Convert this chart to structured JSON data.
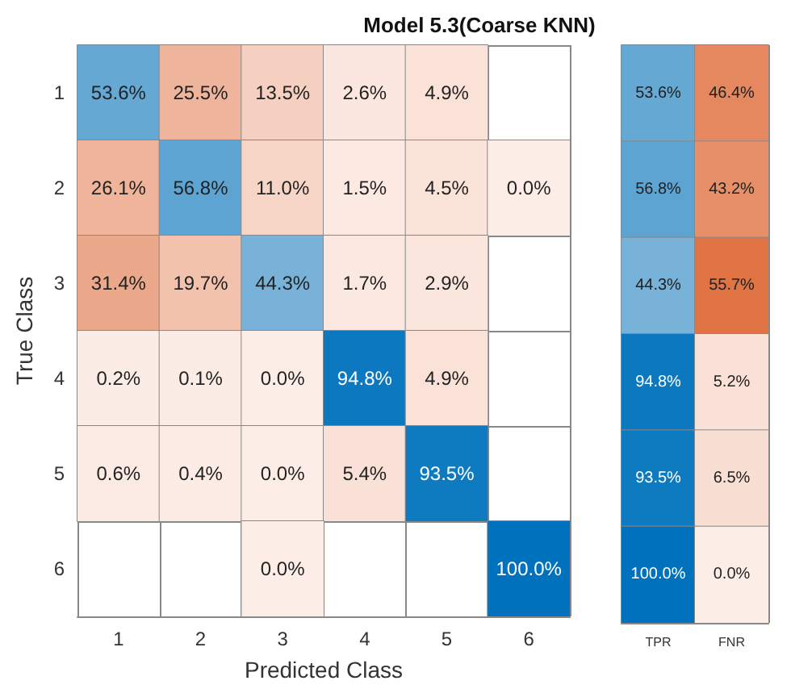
{
  "chart_data": [
    {
      "type": "heatmap",
      "title": "Model 5.3(Coarse KNN)",
      "xlabel": "Predicted Class",
      "ylabel": "True Class",
      "categories": [
        "1",
        "2",
        "3",
        "4",
        "5",
        "6"
      ],
      "y_categories": [
        "1",
        "2",
        "3",
        "4",
        "5",
        "6"
      ],
      "cells": [
        [
          53.6,
          25.5,
          13.5,
          2.6,
          4.9,
          null
        ],
        [
          26.1,
          56.8,
          11.0,
          1.5,
          4.5,
          0.0
        ],
        [
          31.4,
          19.7,
          44.3,
          1.7,
          2.9,
          null
        ],
        [
          0.2,
          0.1,
          0.0,
          94.8,
          4.9,
          null
        ],
        [
          0.6,
          0.4,
          0.0,
          5.4,
          93.5,
          null
        ],
        [
          null,
          null,
          0.0,
          null,
          null,
          100.0
        ]
      ],
      "cell_labels": [
        [
          "53.6%",
          "25.5%",
          "13.5%",
          "2.6%",
          "4.9%",
          null
        ],
        [
          "26.1%",
          "56.8%",
          "11.0%",
          "1.5%",
          "4.5%",
          "0.0%"
        ],
        [
          "31.4%",
          "19.7%",
          "44.3%",
          "1.7%",
          "2.9%",
          null
        ],
        [
          "0.2%",
          "0.1%",
          "0.0%",
          "94.8%",
          "4.9%",
          null
        ],
        [
          "0.6%",
          "0.4%",
          "0.0%",
          "5.4%",
          "93.5%",
          null
        ],
        [
          null,
          null,
          "0.0%",
          null,
          null,
          "100.0%"
        ]
      ]
    },
    {
      "type": "heatmap",
      "categories": [
        "TPR",
        "FNR"
      ],
      "y_categories": [
        "1",
        "2",
        "3",
        "4",
        "5",
        "6"
      ],
      "tick_labels": "x",
      "cells": [
        [
          53.6,
          46.4
        ],
        [
          56.8,
          43.2
        ],
        [
          44.3,
          55.7
        ],
        [
          94.8,
          5.2
        ],
        [
          93.5,
          6.5
        ],
        [
          100.0,
          0.0
        ]
      ],
      "cell_labels": [
        [
          "53.6%",
          "46.4%"
        ],
        [
          "56.8%",
          "43.2%"
        ],
        [
          "44.3%",
          "55.7%"
        ],
        [
          "94.8%",
          "5.2%"
        ],
        [
          "93.5%",
          "6.5%"
        ],
        [
          "100.0%",
          "0.0%"
        ]
      ]
    }
  ]
}
